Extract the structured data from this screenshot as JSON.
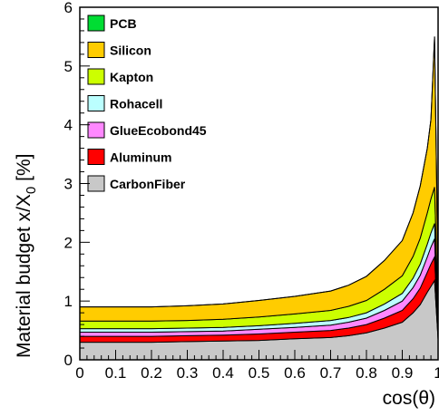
{
  "chart_data": {
    "type": "area",
    "stacked": true,
    "xlabel": "cos(θ)",
    "ylabel": "Material budget x/X",
    "ylabel_sub": "0",
    "ylabel_unit": " [%]",
    "xlim": [
      0,
      1
    ],
    "ylim": [
      0,
      6
    ],
    "x_ticks": [
      "0",
      "0.1",
      "0.2",
      "0.3",
      "0.4",
      "0.5",
      "0.6",
      "0.7",
      "0.8",
      "0.9",
      "1"
    ],
    "y_ticks": [
      "0",
      "1",
      "2",
      "3",
      "4",
      "5",
      "6"
    ],
    "legend_position": "top-left",
    "grid": false,
    "x": [
      0.0,
      0.1,
      0.2,
      0.3,
      0.4,
      0.5,
      0.6,
      0.7,
      0.75,
      0.8,
      0.85,
      0.9,
      0.93,
      0.95,
      0.97,
      0.98,
      0.99,
      1.0
    ],
    "series": [
      {
        "name": "CarbonFiber",
        "color": "#c8c8c8",
        "values": [
          0.3,
          0.3,
          0.3,
          0.31,
          0.32,
          0.33,
          0.36,
          0.38,
          0.41,
          0.46,
          0.54,
          0.64,
          0.8,
          0.94,
          1.15,
          1.25,
          1.35,
          0.35
        ]
      },
      {
        "name": "Aluminum",
        "color": "#ff0000",
        "values": [
          0.1,
          0.1,
          0.1,
          0.1,
          0.1,
          0.11,
          0.11,
          0.12,
          0.13,
          0.14,
          0.17,
          0.2,
          0.24,
          0.28,
          0.34,
          0.38,
          0.4,
          0.12
        ]
      },
      {
        "name": "GlueEcobond45",
        "color": "#ff88ff",
        "values": [
          0.07,
          0.07,
          0.07,
          0.07,
          0.07,
          0.08,
          0.08,
          0.09,
          0.1,
          0.11,
          0.13,
          0.16,
          0.19,
          0.22,
          0.26,
          0.29,
          0.31,
          0.1
        ]
      },
      {
        "name": "Rohacell",
        "color": "#bbffff",
        "values": [
          0.06,
          0.06,
          0.06,
          0.06,
          0.06,
          0.06,
          0.07,
          0.08,
          0.08,
          0.09,
          0.11,
          0.13,
          0.16,
          0.19,
          0.22,
          0.24,
          0.26,
          0.08
        ]
      },
      {
        "name": "Kapton",
        "color": "#ccff00",
        "values": [
          0.13,
          0.13,
          0.13,
          0.13,
          0.14,
          0.15,
          0.16,
          0.17,
          0.19,
          0.21,
          0.25,
          0.3,
          0.37,
          0.44,
          0.53,
          0.58,
          0.62,
          0.2
        ]
      },
      {
        "name": "Silicon",
        "color": "#ffcc00",
        "values": [
          0.24,
          0.24,
          0.24,
          0.25,
          0.26,
          0.28,
          0.3,
          0.33,
          0.36,
          0.41,
          0.49,
          0.6,
          0.74,
          0.89,
          1.1,
          1.35,
          2.56,
          0.45
        ]
      },
      {
        "name": "PCB",
        "color": "#00dd33",
        "values": [
          0,
          0,
          0,
          0,
          0,
          0,
          0,
          0,
          0,
          0,
          0,
          0,
          0,
          0,
          0,
          0,
          0,
          0.2
        ]
      }
    ]
  }
}
